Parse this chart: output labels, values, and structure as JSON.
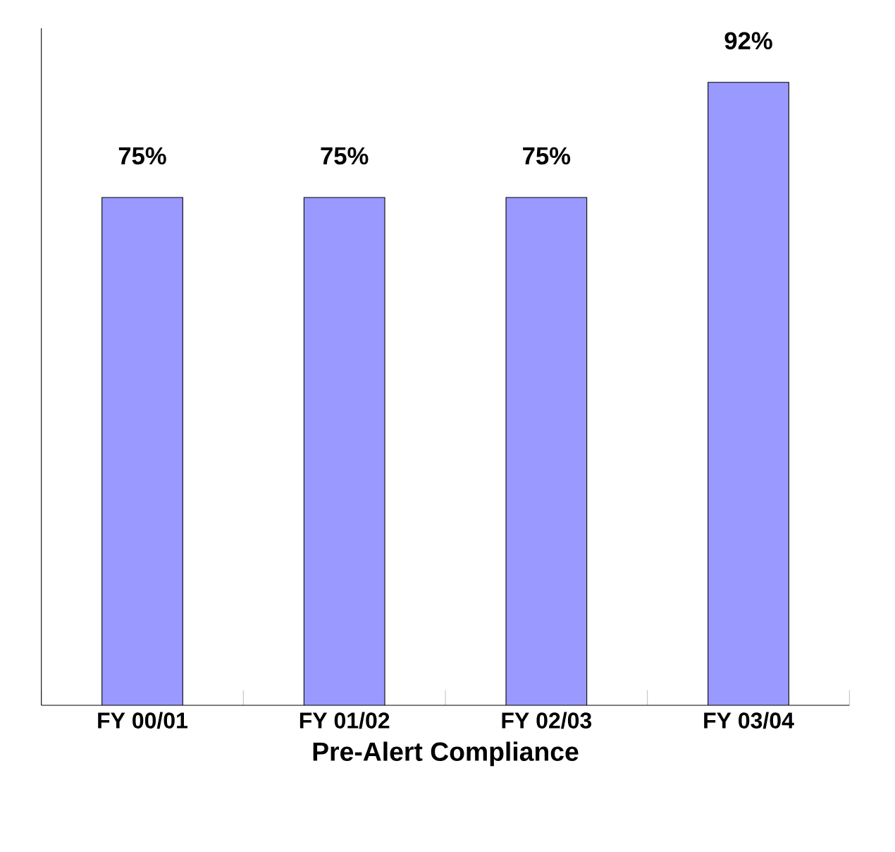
{
  "chart_data": {
    "type": "bar",
    "xlabel": "Pre-Alert Compliance",
    "categories": [
      "FY 00/01",
      "FY 01/02",
      "FY 02/03",
      "FY 03/04"
    ],
    "values": [
      75,
      75,
      75,
      92
    ],
    "value_labels": [
      "75%",
      "75%",
      "75%",
      "92%"
    ],
    "color": "#9999ff",
    "ylim": [
      0,
      100
    ],
    "tick_labels": "x"
  }
}
